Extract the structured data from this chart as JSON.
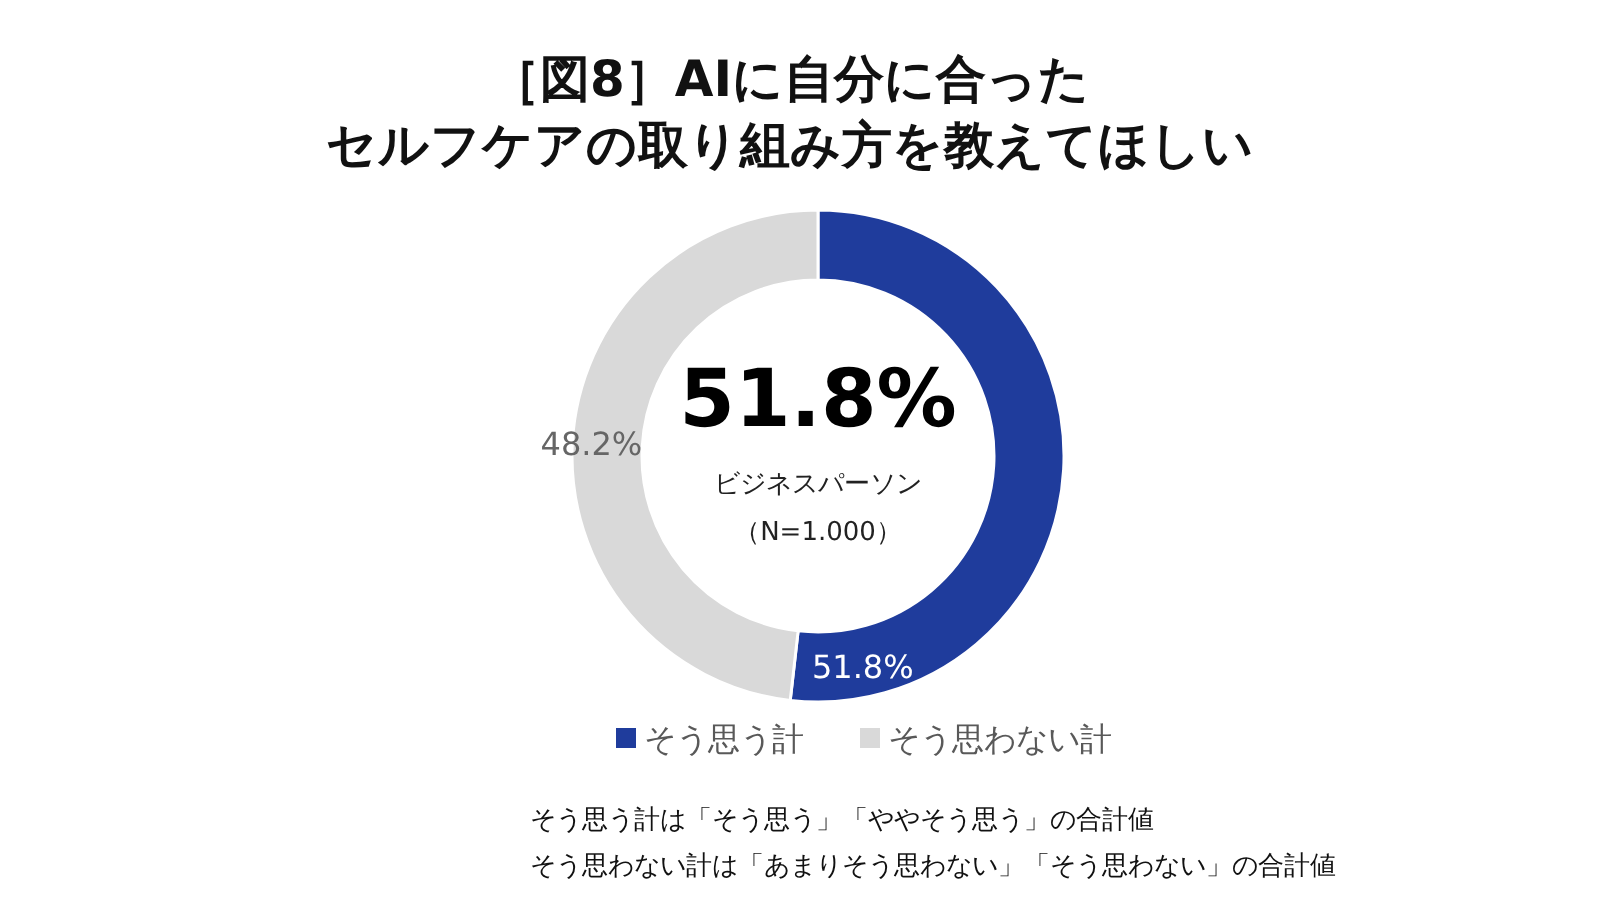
{
  "chart_data": {
    "type": "donut",
    "title": "［図8］AIに自分に合った",
    "subtitle": "セルフケアの取り組み方を教えてほしい",
    "categories": [
      "そう思う計",
      "そう思わない計"
    ],
    "values": [
      51.8,
      48.2
    ],
    "colors": [
      "#1f3c9c",
      "#d9d9d9"
    ],
    "value_labels": [
      "51.8%",
      "48.2%"
    ],
    "legend": "bottom",
    "annotations": [
      "51.8%",
      "ビジネスパーソン",
      "（N=1.000）",
      "そう思う計は「そう思う」「ややそう思う」の合計値",
      "そう思わない計は「あまりそう思わない」「そう思わない」の合計値"
    ]
  }
}
